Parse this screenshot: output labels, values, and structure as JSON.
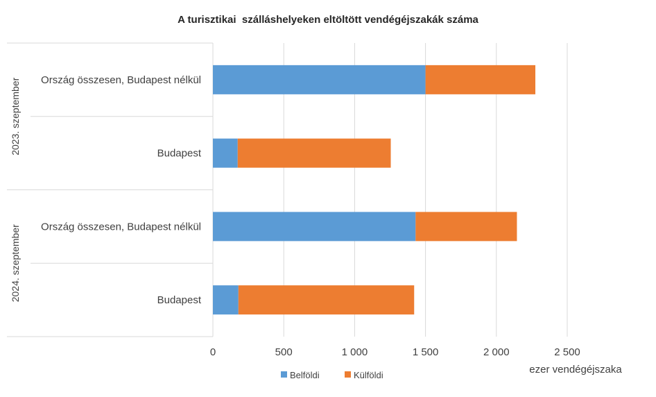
{
  "chart_data": {
    "type": "bar",
    "orientation": "horizontal",
    "stacked": true,
    "title": "A turisztikai  szálláshelyeken eltöltött vendégéjszakák száma",
    "xlabel": "ezer vendégéjszaka",
    "xlim": [
      0,
      2500
    ],
    "xticks": [
      0,
      500,
      1000,
      1500,
      2000,
      2500
    ],
    "xtick_labels": [
      "0",
      "500",
      "1 000",
      "1 500",
      "2 000",
      "2 500"
    ],
    "grid": true,
    "legend_position": "bottom",
    "groups": [
      {
        "label": "2023. szeptember",
        "categories": [
          "Ország összesen, Budapest nélkül",
          "Budapest"
        ],
        "values": {
          "Belföldi": [
            1500,
            175
          ],
          "Külföldi": [
            775,
            1080
          ]
        }
      },
      {
        "label": "2024. szeptember",
        "categories": [
          "Ország összesen, Budapest nélkül",
          "Budapest"
        ],
        "values": {
          "Belföldi": [
            1430,
            180
          ],
          "Külföldi": [
            715,
            1240
          ]
        }
      }
    ],
    "series": [
      {
        "name": "Belföldi",
        "color": "#5b9bd5"
      },
      {
        "name": "Külföldi",
        "color": "#ed7d31"
      }
    ]
  }
}
